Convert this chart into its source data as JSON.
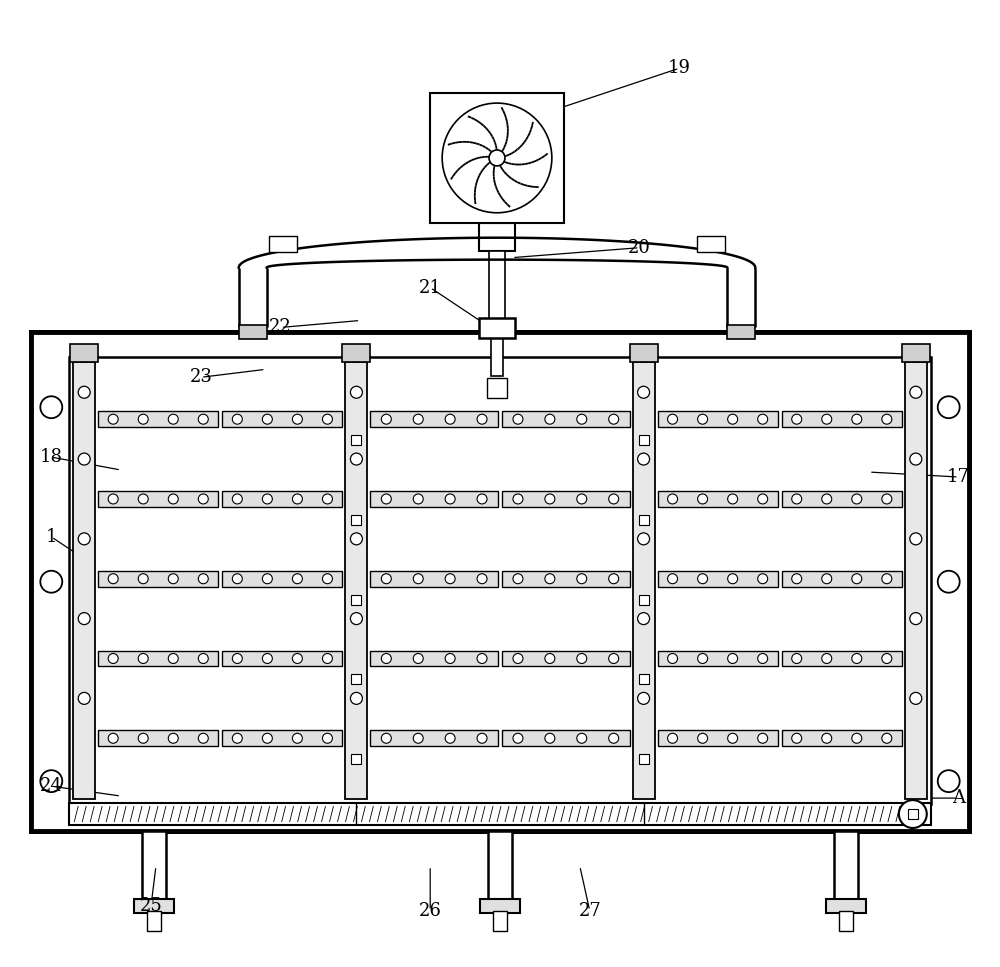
{
  "bg_color": "#ffffff",
  "line_color": "#000000",
  "label_fontsize": 13,
  "fig_width": 10.0,
  "fig_height": 9.67
}
